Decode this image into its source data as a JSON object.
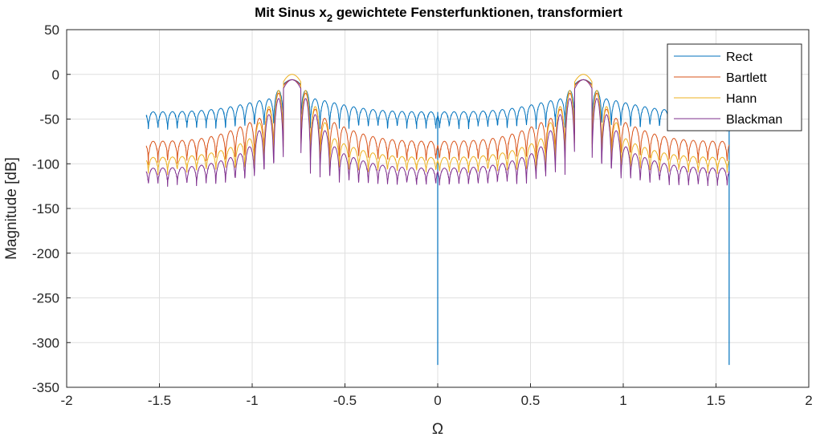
{
  "chart_data": {
    "type": "line",
    "title": "Mit Sinus x",
    "title_subscript": "2",
    "title_rest": " gewichtete Fensterfunktionen, transformiert",
    "xlabel": "Ω",
    "ylabel": "Magnitude [dB]",
    "xlim": [
      -2,
      2
    ],
    "ylim": [
      -350,
      50
    ],
    "xticks": [
      -2,
      -1.5,
      -1,
      -0.5,
      0,
      0.5,
      1,
      1.5,
      2
    ],
    "xtick_labels": [
      "-2",
      "-1.5",
      "-1",
      "-0.5",
      "0",
      "0.5",
      "1",
      "1.5",
      "2"
    ],
    "yticks": [
      50,
      0,
      -50,
      -100,
      -150,
      -200,
      -250,
      -300,
      -350
    ],
    "ytick_labels": [
      "50",
      "0",
      "-50",
      "-100",
      "-150",
      "-200",
      "-250",
      "-300",
      "-350"
    ],
    "grid": true,
    "legend_position": "top-right",
    "x_range": [
      -1.5708,
      1.5708
    ],
    "main_lobe_centers": [
      -0.785,
      0.785
    ],
    "series": [
      {
        "name": "Rect",
        "color": "#0072BD",
        "floor_db": -42,
        "envelope_peak_db": -25,
        "notch_depth_db": -62,
        "peak_db": -6,
        "deep_notches": [
          {
            "x": 0,
            "y": -325
          },
          {
            "x": 1.5708,
            "y": -325
          }
        ]
      },
      {
        "name": "Bartlett",
        "color": "#D95319",
        "floor_db": -75,
        "envelope_peak_db": -40,
        "notch_depth_db": -100,
        "peak_db": -6
      },
      {
        "name": "Hann",
        "color": "#EDB120",
        "floor_db": -93,
        "envelope_peak_db": -60,
        "notch_depth_db": -110,
        "peak_db": 0
      },
      {
        "name": "Blackman",
        "color": "#7E2F8E",
        "floor_db": -105,
        "envelope_peak_db": -70,
        "notch_depth_db": -125,
        "peak_db": -6
      }
    ]
  }
}
